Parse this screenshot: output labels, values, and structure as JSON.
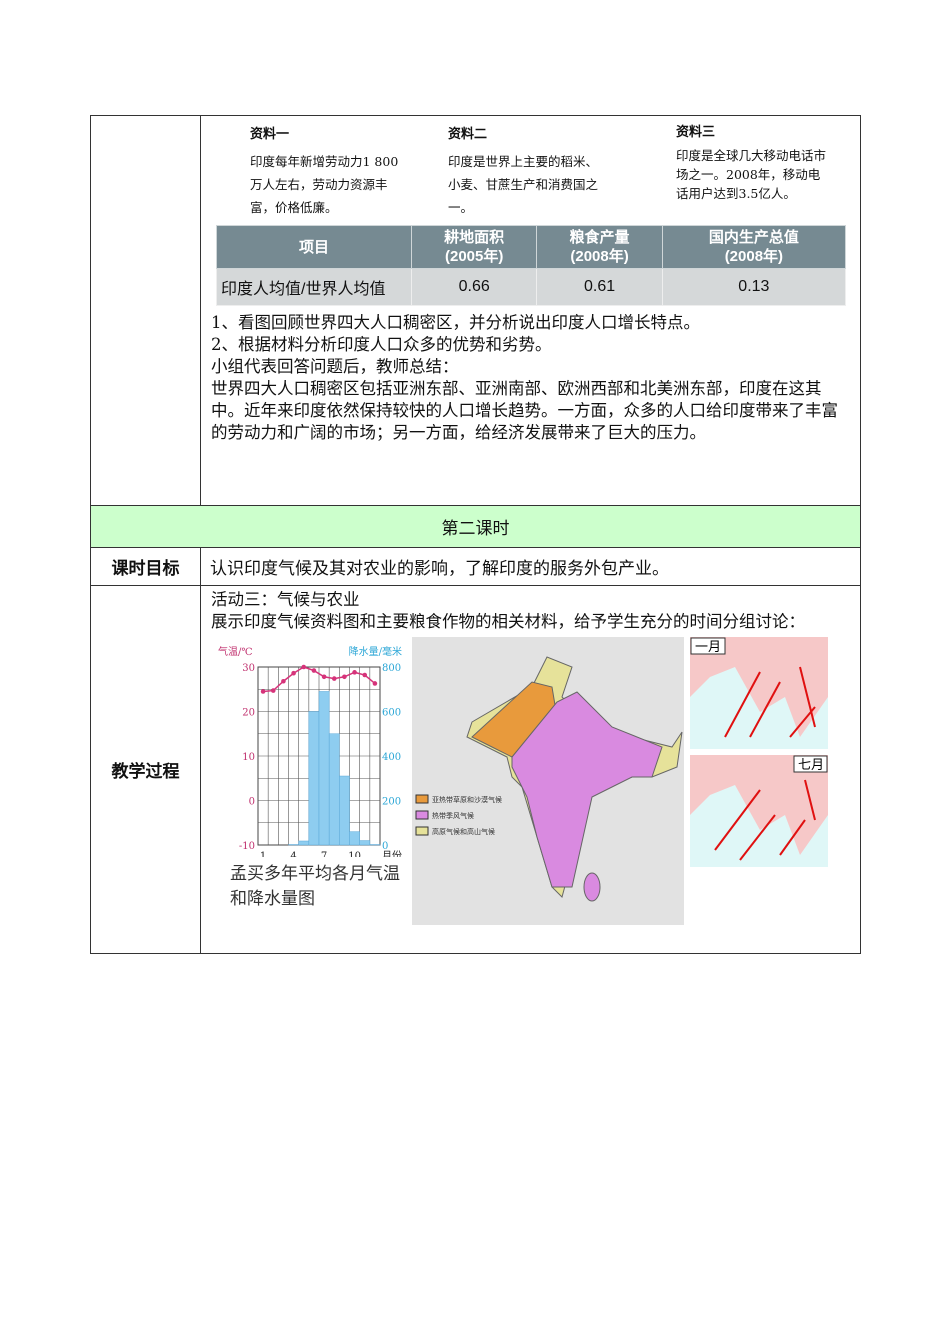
{
  "materials": [
    {
      "title": "资料一",
      "text": "印度每年新增劳动力1 800 万人左右，劳动力资源丰富，价格低廉。"
    },
    {
      "title": "资料二",
      "text": "印度是世界上主要的稻米、小麦、甘蔗生产和消费国之一。"
    },
    {
      "title": "资料三",
      "text": "印度是全球几大移动电话市场之一。2008年，移动电话用户达到3.5亿人。"
    }
  ],
  "stat_table": {
    "headers": [
      {
        "l1": "项目",
        "l2": ""
      },
      {
        "l1": "耕地面积",
        "l2": "(2005年)"
      },
      {
        "l1": "粮食产量",
        "l2": "(2008年)"
      },
      {
        "l1": "国内生产总值",
        "l2": "(2008年)"
      }
    ],
    "row": [
      "印度人均值/世界人均值",
      "0.66",
      "0.61",
      "0.13"
    ]
  },
  "row1_lines": [
    "1、看图回顾世界四大人口稠密区，并分析说出印度人口增长特点。",
    "2、根据材料分析印度人口众多的优势和劣势。",
    "小组代表回答问题后，教师总结：",
    "世界四大人口稠密区包括亚洲东部、亚洲南部、欧洲西部和北美洲东部，印度在这其中。近年来印度依然保持较快的人口增长趋势。一方面，众多的人口给印度带来了丰富的劳动力和广阔的市场；另一方面，给经济发展带来了巨大的压力。"
  ],
  "section2": "第二课时",
  "goal_label": "课时目标",
  "goal_text": "认识印度气候及其对农业的影响，了解印度的服务外包产业。",
  "process_label": "教学过程",
  "process_lines": [
    "活动三：气候与农业",
    "展示印度气候资料图和主要粮食作物的相关材料，给予学生充分的时间分组讨论："
  ],
  "chart_data": {
    "type": "bar+line",
    "title": "孟买多年平均各月气温和降水量图",
    "ylabel_left": "气温/℃",
    "ylabel_right": "降水量/毫米",
    "xlabel": "月份",
    "x": [
      1,
      2,
      3,
      4,
      5,
      6,
      7,
      8,
      9,
      10,
      11,
      12
    ],
    "xticks": [
      "1",
      "4",
      "7",
      "10"
    ],
    "yticks_left": [
      "30",
      "20",
      "10",
      "0",
      "-10"
    ],
    "ylim_left": [
      -10,
      30
    ],
    "yticks_right": [
      "800",
      "600",
      "400",
      "200",
      "0"
    ],
    "ylim_right": [
      0,
      800
    ],
    "series": [
      {
        "name": "气温",
        "type": "line",
        "color": "#d6337a",
        "values": [
          24.5,
          24.7,
          26.8,
          28.6,
          30,
          29.2,
          27.8,
          27.4,
          27.8,
          28.8,
          28.2,
          26.3
        ]
      },
      {
        "name": "降水量",
        "type": "bar",
        "color": "#8ecdf0",
        "values": [
          0,
          0,
          0,
          2,
          18,
          600,
          690,
          500,
          310,
          60,
          20,
          2
        ]
      }
    ]
  },
  "map": {
    "legend": [
      "亚热带草原和沙漠气候",
      "热带季风气候",
      "高原气候和高山气候"
    ],
    "colors": [
      "#e89a3c",
      "#d98ae0",
      "#e6e29a"
    ]
  },
  "monsoon": {
    "jan": "一月",
    "jul": "七月"
  }
}
